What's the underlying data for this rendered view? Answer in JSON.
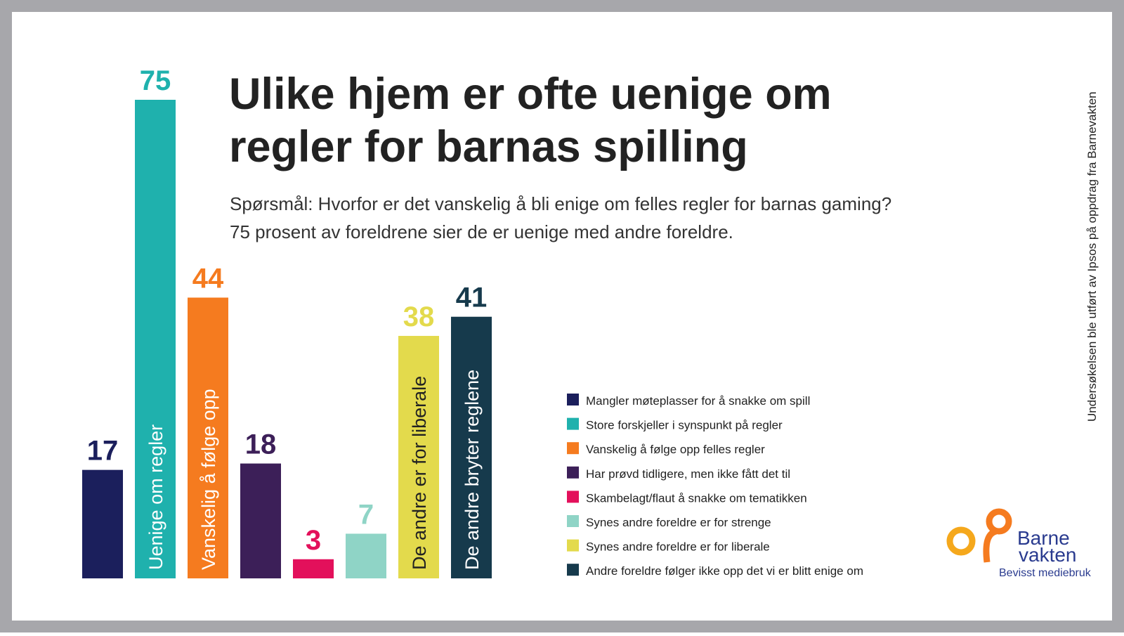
{
  "chart_data": {
    "type": "bar",
    "title": [
      "Ulike hjem er ofte uenige om",
      "regler for barnas spilling"
    ],
    "subtitle": [
      "Spørsmål: Hvorfor er det vanskelig å bli enige om felles regler for barnas gaming?",
      "75 prosent av foreldrene sier de er uenige med andre foreldre."
    ],
    "source": "Undersøkelsen ble utført av Ipsos på oppdrag fra Barnevakten",
    "categories": [
      "Mangler møteplasser for å snakke om spill",
      "Store forskjeller i synspunkt på regler",
      "Vanskelig å følge opp felles regler",
      "Har prøvd tidligere, men ikke fått det til",
      "Skambelagt/flaut å snakke om tematikken",
      "Synes andre foreldre er for strenge",
      "Synes andre foreldre er for liberale",
      "Andre foreldre følger ikke opp det vi er blitt enige om"
    ],
    "values": [
      17,
      75,
      44,
      18,
      3,
      7,
      38,
      41
    ],
    "bar_labels": [
      null,
      "Uenige om regler",
      "Vanskelig å følge opp",
      null,
      null,
      null,
      "De andre er for liberale",
      "De andre bryter reglene"
    ],
    "colors": [
      "#1b1f5c",
      "#1fb1ad",
      "#f57b1f",
      "#3c1f58",
      "#e3105b",
      "#8fd4c6",
      "#e3da4c",
      "#163a4c"
    ],
    "ylim": [
      0,
      75
    ],
    "logo": [
      "Barne",
      "vakten",
      "Bevisst mediebruk"
    ]
  }
}
